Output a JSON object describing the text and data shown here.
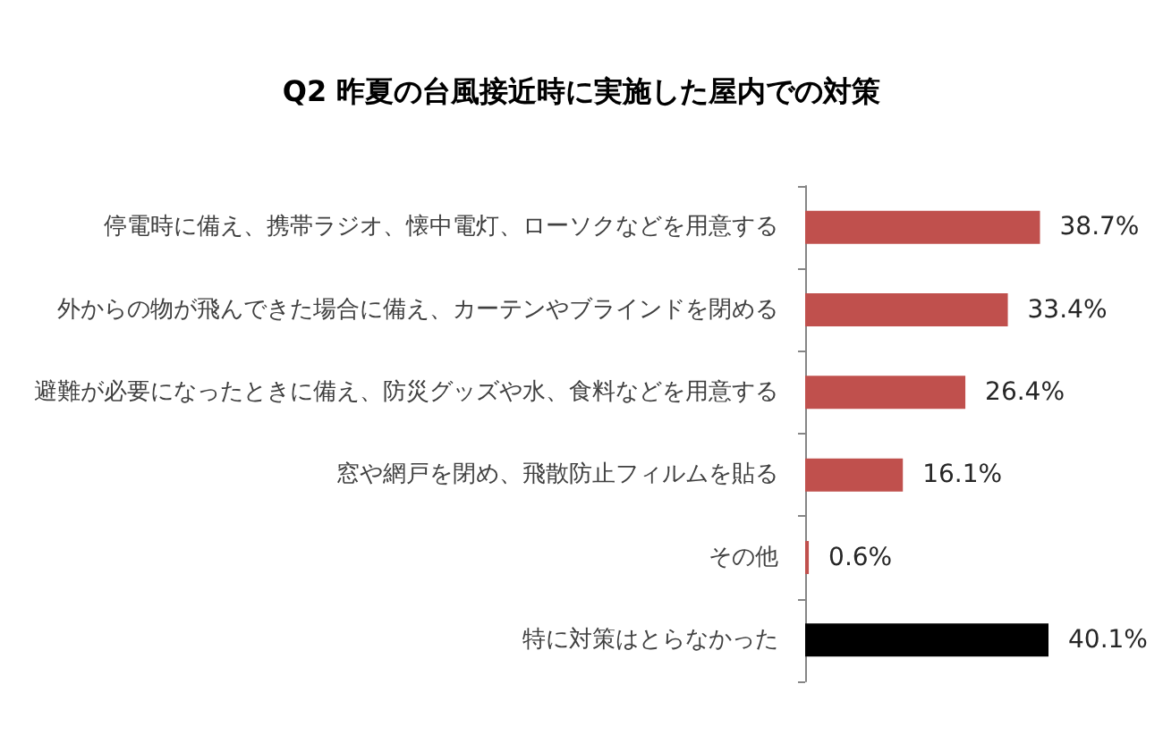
{
  "chart_data": {
    "type": "bar",
    "orientation": "horizontal",
    "title": "Q2 昨夏の台風接近時に実施した屋内での対策",
    "categories": [
      "停電時に備え、携帯ラジオ、懐中電灯、ローソクなどを用意する",
      "外からの物が飛んできた場合に備え、カーテンやブラインドを閉める",
      "避難が必要になったときに備え、防災グッズや水、食料などを用意する",
      "窓や網戸を閉め、飛散防止フィルムを貼る",
      "その他",
      "特に対策はとらなかった"
    ],
    "values": [
      38.7,
      33.4,
      26.4,
      16.1,
      0.6,
      40.1
    ],
    "colors": [
      "#c0504d",
      "#c0504d",
      "#c0504d",
      "#c0504d",
      "#c0504d",
      "#000000"
    ],
    "value_labels": [
      "38.7%",
      "33.4%",
      "26.4%",
      "16.1%",
      "0.6%",
      "40.1%"
    ]
  }
}
